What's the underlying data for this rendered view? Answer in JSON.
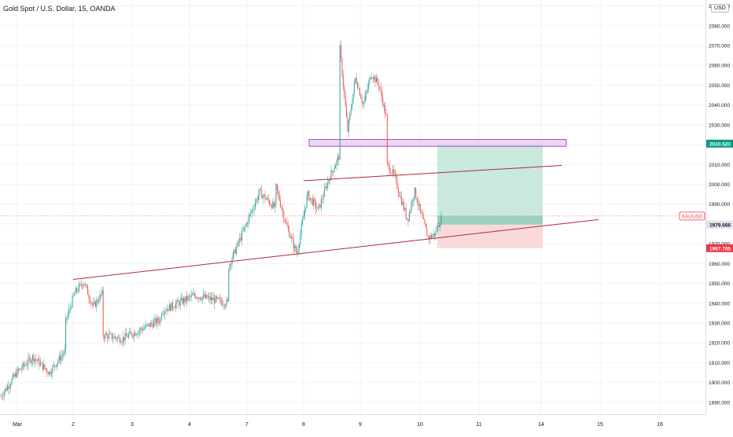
{
  "title": "Gold Spot / U.S. Dollar, 15, OANDA",
  "currency_button": "USD",
  "symbol_label": "XAUUSD",
  "colors": {
    "up": "#26a69a",
    "down": "#ef5350",
    "trendline": "#b22833",
    "zone_fill": "#e7c9f1",
    "zone_border": "#9c27b0",
    "target_fill": "#b2dfd2",
    "stop_fill": "#f8c9cd",
    "green_tag": "#089981",
    "red_tag": "#f23645",
    "grey_tag": "#e0e3eb",
    "grid": "#f0f3fa"
  },
  "chart_data": {
    "type": "candlestick",
    "y_ticks": [
      "1890.000",
      "1900.000",
      "1910.000",
      "1920.000",
      "1930.000",
      "1940.000",
      "1950.000",
      "1960.000",
      "1970.000",
      "1980.000",
      "1990.000",
      "2000.000",
      "2010.000",
      "2020.000",
      "2030.000",
      "2040.000",
      "2050.000",
      "2060.000",
      "2070.000",
      "2080.000",
      "2090.000"
    ],
    "ylim": [
      1884,
      2093
    ],
    "x_ticks": [
      "Mar",
      "2",
      "3",
      "4",
      "7",
      "8",
      "9",
      "10",
      "11",
      "14",
      "15",
      "16"
    ],
    "price_labels": [
      {
        "text": "2020.523",
        "value": 2020.523,
        "style": "green"
      },
      {
        "text": "XAUUSD",
        "value": 1984.0,
        "style": "red-outline"
      },
      {
        "text": "1979.666",
        "value": 1979.666,
        "style": "grey"
      },
      {
        "text": "1967.765",
        "value": 1967.765,
        "style": "red"
      }
    ],
    "current_price": 1984.0,
    "resistance_zone": {
      "top": 2022.6,
      "bottom": 2019.2
    },
    "position": {
      "entry": 1979.666,
      "target": 2020.523,
      "stop": 1967.765
    },
    "trendlines": [
      {
        "name": "lower",
        "from": [
          "2",
          1952.0
        ],
        "to": [
          "15",
          1982.2
        ]
      },
      {
        "name": "upper",
        "from": [
          "8",
          2001.8
        ],
        "to": [
          "14",
          2009.5
        ]
      }
    ],
    "price_path": [
      [
        "Mar",
        1893
      ],
      [
        "Mar",
        1905
      ],
      [
        "Mar",
        1913
      ],
      [
        "Mar",
        1905
      ],
      [
        "Mar",
        1916
      ],
      [
        "2",
        1930
      ],
      [
        "2",
        1945
      ],
      [
        "2",
        1951
      ],
      [
        "2",
        1938
      ],
      [
        "2",
        1945
      ],
      [
        "3",
        1924
      ],
      [
        "3",
        1922
      ],
      [
        "3",
        1927
      ],
      [
        "3",
        1932
      ],
      [
        "4",
        1936
      ],
      [
        "4",
        1944
      ],
      [
        "4",
        1940
      ],
      [
        "7",
        1958
      ],
      [
        "7",
        1977
      ],
      [
        "7",
        1996
      ],
      [
        "7",
        1988
      ],
      [
        "8",
        2000
      ],
      [
        "8",
        1980
      ],
      [
        "8",
        1965
      ],
      [
        "8",
        1995
      ],
      [
        "8",
        1987
      ],
      [
        "8",
        2003
      ],
      [
        "8",
        2015
      ],
      [
        "9",
        2069
      ],
      [
        "9",
        2027
      ],
      [
        "9",
        2054
      ],
      [
        "9",
        2040
      ],
      [
        "9",
        2056
      ],
      [
        "9",
        2050
      ],
      [
        "9",
        2032
      ],
      [
        "10",
        2010
      ],
      [
        "10",
        2005
      ],
      [
        "10",
        1993
      ],
      [
        "10",
        1982
      ],
      [
        "10",
        1997
      ],
      [
        "10",
        1984
      ],
      [
        "10",
        1973
      ],
      [
        "10",
        1975
      ],
      [
        "10",
        1984
      ]
    ]
  }
}
